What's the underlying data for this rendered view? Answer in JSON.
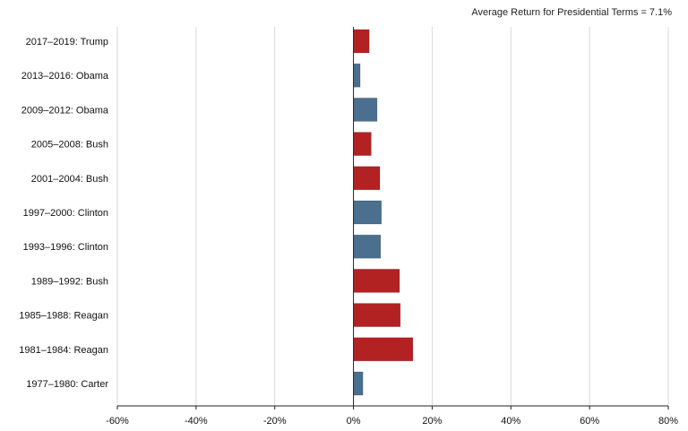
{
  "note": "Average Return for Presidential Terms = 7.1%",
  "chart_data": {
    "type": "bar",
    "orientation": "horizontal",
    "categories": [
      "2017–2019: Trump",
      "2013–2016: Obama",
      "2009–2012: Obama",
      "2005–2008: Bush",
      "2001–2004: Bush",
      "1997–2000: Clinton",
      "1993–1996: Clinton",
      "1989–1992: Bush",
      "1985–1988: Reagan",
      "1981–1984: Reagan",
      "1977–1980: Carter"
    ],
    "values": [
      4.0,
      1.7,
      6.0,
      4.5,
      6.7,
      7.1,
      6.9,
      11.7,
      11.9,
      15.1,
      2.4
    ],
    "party": [
      "R",
      "D",
      "D",
      "R",
      "R",
      "D",
      "D",
      "R",
      "R",
      "R",
      "D"
    ],
    "colors": {
      "R": "#b22222",
      "D": "#4b6f8f"
    },
    "xlim": [
      -60,
      80
    ],
    "xticks": [
      -60,
      -40,
      -20,
      0,
      20,
      40,
      60,
      80
    ],
    "xtick_labels": [
      "-60%",
      "-40%",
      "-20%",
      "0%",
      "20%",
      "40%",
      "60%",
      "80%"
    ],
    "grid": true,
    "title": "",
    "xlabel": "",
    "ylabel": ""
  }
}
